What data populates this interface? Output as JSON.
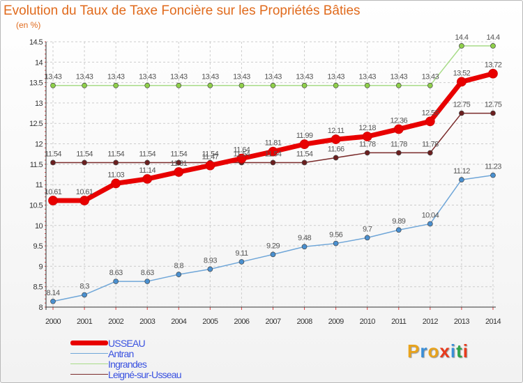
{
  "title": "Evolution du Taux de Taxe Foncière sur les Propriétés Bâties",
  "unit": "(en %)",
  "brand": {
    "text": "Proxiti",
    "colors": [
      "#e8a31c",
      "#3a8fd8",
      "#e8a31c",
      "#e83a1c",
      "#3a8fd8",
      "#2ea34a",
      "#e83a1c"
    ]
  },
  "chart_data": {
    "type": "line",
    "title": "Evolution du Taux de Taxe Foncière sur les Propriétés Bâties",
    "ylabel": "(en %)",
    "xlabel": "",
    "x": [
      "2000",
      "2001",
      "2002",
      "2003",
      "2004",
      "2005",
      "2006",
      "2007",
      "2008",
      "2009",
      "2010",
      "2011",
      "2012",
      "2013",
      "2014"
    ],
    "ylim": [
      8,
      14.5
    ],
    "yticks": [
      "8",
      "8.5",
      "9",
      "9.5",
      "10",
      "10.5",
      "11",
      "11.5",
      "12",
      "12.5",
      "13",
      "13.5",
      "14",
      "14.5"
    ],
    "grid": true,
    "legend": "bottom-left",
    "series": [
      {
        "name": "Ingrandes",
        "color": "#8fd04a",
        "line": "#a8dc88",
        "width": 1.5,
        "marker": 3.5,
        "values": [
          13.43,
          13.43,
          13.43,
          13.43,
          13.43,
          13.43,
          13.43,
          13.43,
          13.43,
          13.43,
          13.43,
          13.43,
          13.43,
          14.4,
          14.4
        ],
        "labels": [
          "13.43",
          "13.43",
          "13.43",
          "13.43",
          "13.43",
          "13.43",
          "13.43",
          "13.43",
          "13.43",
          "13.43",
          "13.43",
          "13.43",
          "13.43",
          "14.4",
          "14.4"
        ]
      },
      {
        "name": "Leigné-sur-Usseau",
        "color": "#6b1f1f",
        "line": "#7a2a2a",
        "width": 1.5,
        "marker": 3.5,
        "values": [
          11.54,
          11.54,
          11.54,
          11.54,
          11.54,
          11.54,
          11.54,
          11.54,
          11.54,
          11.66,
          11.78,
          11.78,
          11.78,
          12.75,
          12.75
        ],
        "labels": [
          "11.54",
          "11.54",
          "11.54",
          "11.54",
          "11.54",
          "11.54",
          "11.54",
          "11.54",
          "11.54",
          "11.66",
          "11.78",
          "11.78",
          "11.78",
          "12.75",
          "12.75"
        ]
      },
      {
        "name": "Antran",
        "color": "#4a90d0",
        "line": "#6fa6d8",
        "width": 1.5,
        "marker": 3.5,
        "values": [
          8.14,
          8.3,
          8.63,
          8.63,
          8.8,
          8.93,
          9.11,
          9.29,
          9.48,
          9.56,
          9.7,
          9.89,
          10.04,
          11.12,
          11.23
        ],
        "labels": [
          "8.14",
          "8.3",
          "8.63",
          "8.63",
          "8.8",
          "8.93",
          "9.11",
          "9.29",
          "9.48",
          "9.56",
          "9.7",
          "9.89",
          "10.04",
          "11.12",
          "11.23"
        ]
      },
      {
        "name": "USSEAU",
        "color": "#e80000",
        "line": "#e80000",
        "width": 7,
        "marker": 6.5,
        "values": [
          10.61,
          10.61,
          11.03,
          11.14,
          11.31,
          11.47,
          11.64,
          11.81,
          11.99,
          12.11,
          12.18,
          12.36,
          12.55,
          13.52,
          13.72
        ],
        "labels": [
          "10.61",
          "10.61",
          "11.03",
          "11.14",
          "11.31",
          "11.47",
          "11.64",
          "11.81",
          "11.99",
          "12.11",
          "12.18",
          "12.36",
          "12.55",
          "13.52",
          "13.72"
        ]
      }
    ]
  },
  "legend_items": [
    {
      "name": "USSEAU",
      "color": "#e80000",
      "thick": 7
    },
    {
      "name": "Antran",
      "color": "#6fa6d8",
      "thick": 1.5
    },
    {
      "name": "Ingrandes",
      "color": "#a8dc88",
      "thick": 1.5
    },
    {
      "name": "Leigné-sur-Usseau",
      "color": "#7a2a2a",
      "thick": 1.5
    }
  ]
}
